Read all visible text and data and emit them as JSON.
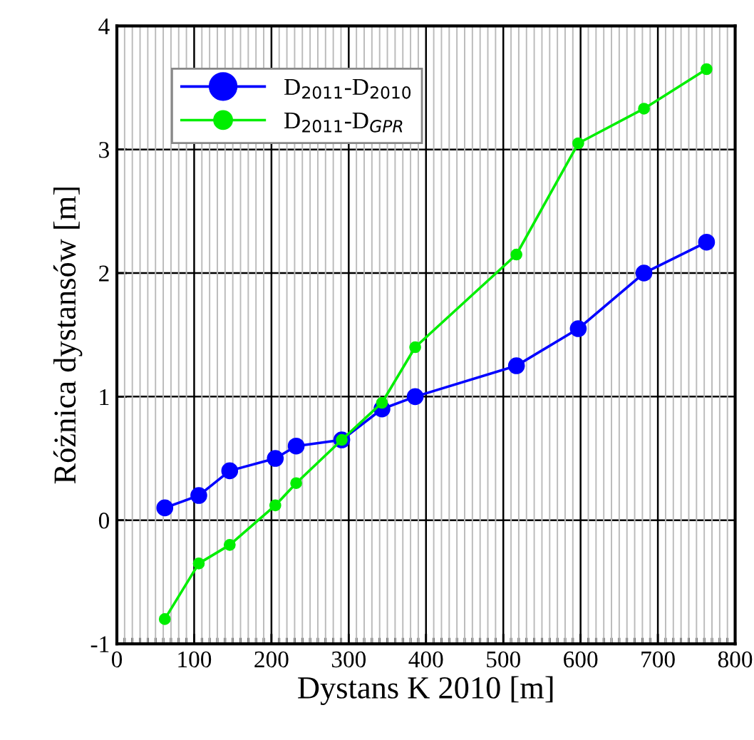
{
  "chart_data": {
    "type": "line",
    "xlabel": "Dystans K 2010 [m]",
    "ylabel": "Różnica dystansów [m]",
    "xlim": [
      0,
      800
    ],
    "ylim": [
      -1,
      4
    ],
    "xticks": [
      0,
      {
        "value": 10,
        "label": null
      },
      {
        "value": 20,
        "label": null
      },
      {
        "value": 30,
        "label": null
      },
      {
        "value": 40,
        "label": null
      },
      {
        "value": 50,
        "label": null
      },
      {
        "value": 60,
        "label": null
      },
      {
        "value": 70,
        "label": null
      },
      {
        "value": 80,
        "label": null
      },
      {
        "value": 90,
        "label": null
      },
      100,
      {
        "value": 110,
        "label": null
      },
      {
        "value": 120,
        "label": null
      },
      {
        "value": 130,
        "label": null
      },
      {
        "value": 140,
        "label": null
      },
      {
        "value": 150,
        "label": null
      },
      {
        "value": 160,
        "label": null
      },
      {
        "value": 170,
        "label": null
      },
      {
        "value": 180,
        "label": null
      },
      {
        "value": 190,
        "label": null
      },
      200,
      {
        "value": 210,
        "label": null
      },
      {
        "value": 220,
        "label": null
      },
      {
        "value": 230,
        "label": null
      },
      {
        "value": 240,
        "label": null
      },
      {
        "value": 250,
        "label": null
      },
      {
        "value": 260,
        "label": null
      },
      {
        "value": 270,
        "label": null
      },
      {
        "value": 280,
        "label": null
      },
      {
        "value": 290,
        "label": null
      },
      300,
      {
        "value": 310,
        "label": null
      },
      {
        "value": 320,
        "label": null
      },
      {
        "value": 330,
        "label": null
      },
      {
        "value": 340,
        "label": null
      },
      {
        "value": 350,
        "label": null
      },
      {
        "value": 360,
        "label": null
      },
      {
        "value": 370,
        "label": null
      },
      {
        "value": 380,
        "label": null
      },
      {
        "value": 390,
        "label": null
      },
      400,
      {
        "value": 410,
        "label": null
      },
      {
        "value": 420,
        "label": null
      },
      {
        "value": 430,
        "label": null
      },
      {
        "value": 440,
        "label": null
      },
      {
        "value": 450,
        "label": null
      },
      {
        "value": 460,
        "label": null
      },
      {
        "value": 470,
        "label": null
      },
      {
        "value": 480,
        "label": null
      },
      {
        "value": 490,
        "label": null
      },
      500,
      {
        "value": 510,
        "label": null
      },
      {
        "value": 520,
        "label": null
      },
      {
        "value": 530,
        "label": null
      },
      {
        "value": 540,
        "label": null
      },
      {
        "value": 550,
        "label": null
      },
      {
        "value": 560,
        "label": null
      },
      {
        "value": 570,
        "label": null
      },
      {
        "value": 580,
        "label": null
      },
      {
        "value": 590,
        "label": null
      },
      600,
      {
        "value": 610,
        "label": null
      },
      {
        "value": 620,
        "label": null
      },
      {
        "value": 630,
        "label": null
      },
      {
        "value": 640,
        "label": null
      },
      {
        "value": 650,
        "label": null
      },
      {
        "value": 660,
        "label": null
      },
      {
        "value": 670,
        "label": null
      },
      {
        "value": 680,
        "label": null
      },
      {
        "value": 690,
        "label": null
      },
      700,
      {
        "value": 710,
        "label": null
      },
      {
        "value": 720,
        "label": null
      },
      {
        "value": 730,
        "label": null
      },
      {
        "value": 740,
        "label": null
      },
      {
        "value": 750,
        "label": null
      },
      {
        "value": 760,
        "label": null
      },
      {
        "value": 770,
        "label": null
      },
      {
        "value": 780,
        "label": null
      },
      {
        "value": 790,
        "label": null
      },
      800
    ],
    "yticks": [
      -1,
      0,
      1,
      2,
      3,
      4
    ],
    "grid": true,
    "legend": "top left",
    "marker": "circle",
    "line_style": "solid",
    "x": [
      62,
      106,
      146,
      205,
      232,
      291,
      343,
      386,
      517,
      597,
      682,
      763
    ],
    "series": [
      {
        "name": "D$_{2011}$-D$_{2010}$",
        "color": "#0000ff",
        "values": [
          0.1,
          0.2,
          0.4,
          0.5,
          0.6,
          0.65,
          0.9,
          1.0,
          1.25,
          1.55,
          2.0,
          2.25
        ]
      },
      {
        "name": "D$_{2011}$-D$_{GPR}$",
        "color": "#00ee00",
        "values": [
          -0.8,
          -0.35,
          -0.2,
          0.12,
          0.3,
          0.65,
          0.95,
          1.4,
          2.15,
          3.05,
          3.33,
          3.65
        ]
      }
    ]
  }
}
